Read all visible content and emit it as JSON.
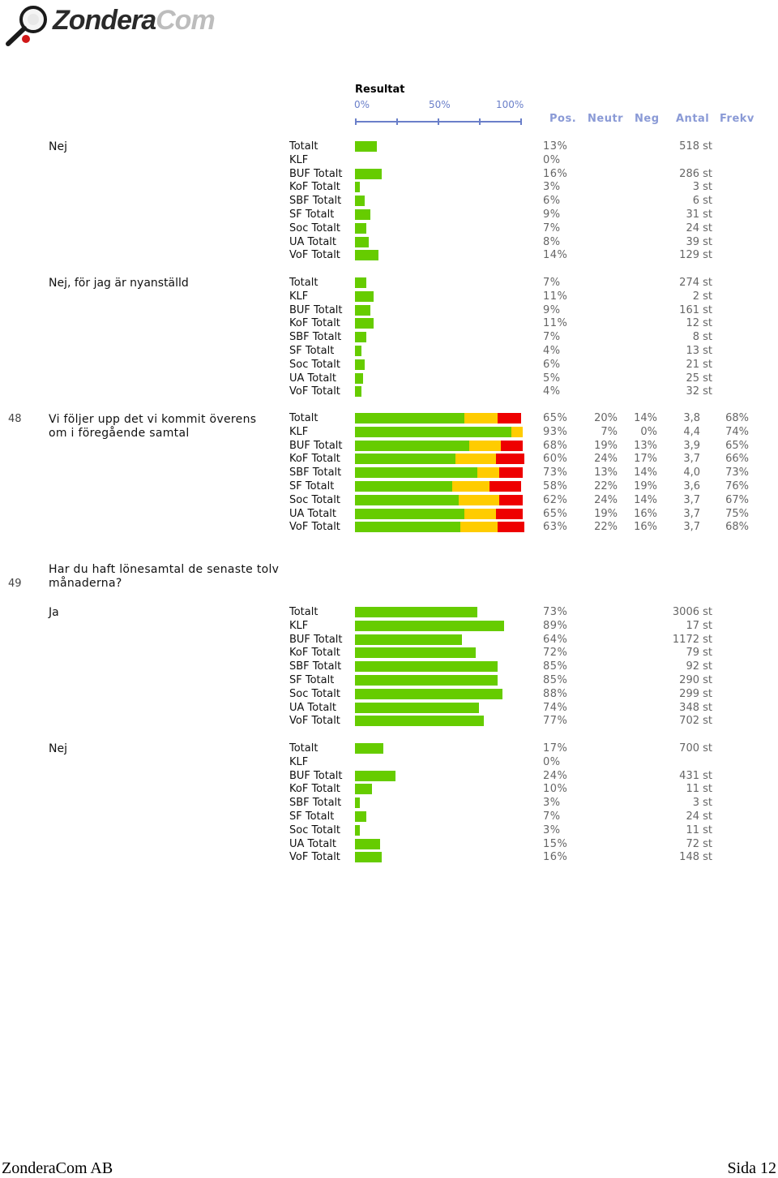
{
  "logo": {
    "text_main": "Zondera",
    "text_com": "Com"
  },
  "header": {
    "title": "Resultat",
    "scale": [
      "0%",
      "50%",
      "100%"
    ],
    "columns": {
      "pos": "Pos.",
      "neutr": "Neutr",
      "neg": "Neg",
      "antal": "Antal",
      "frekv": "Frekv"
    }
  },
  "questions": {
    "q48": {
      "number": "48",
      "text": "Vi följer upp det vi kommit överens om i föregående samtal"
    },
    "q49": {
      "number": "49",
      "text": "Har du haft lönesamtal de senaste tolv månaderna?"
    }
  },
  "groups": [
    {
      "label": "Nej",
      "type": "count",
      "rows": [
        {
          "label": "Totalt",
          "pct": "13%",
          "count": "518 st",
          "value": 13
        },
        {
          "label": "KLF",
          "pct": "0%",
          "count": "",
          "value": 0
        },
        {
          "label": "BUF Totalt",
          "pct": "16%",
          "count": "286 st",
          "value": 16
        },
        {
          "label": "KoF Totalt",
          "pct": "3%",
          "count": "3 st",
          "value": 3
        },
        {
          "label": "SBF Totalt",
          "pct": "6%",
          "count": "6 st",
          "value": 6
        },
        {
          "label": "SF Totalt",
          "pct": "9%",
          "count": "31 st",
          "value": 9
        },
        {
          "label": "Soc Totalt",
          "pct": "7%",
          "count": "24 st",
          "value": 7
        },
        {
          "label": "UA Totalt",
          "pct": "8%",
          "count": "39 st",
          "value": 8
        },
        {
          "label": "VoF Totalt",
          "pct": "14%",
          "count": "129 st",
          "value": 14
        }
      ]
    },
    {
      "label": "Nej, för jag är nyanställd",
      "type": "count",
      "rows": [
        {
          "label": "Totalt",
          "pct": "7%",
          "count": "274 st",
          "value": 7
        },
        {
          "label": "KLF",
          "pct": "11%",
          "count": "2 st",
          "value": 11
        },
        {
          "label": "BUF Totalt",
          "pct": "9%",
          "count": "161 st",
          "value": 9
        },
        {
          "label": "KoF Totalt",
          "pct": "11%",
          "count": "12 st",
          "value": 11
        },
        {
          "label": "SBF Totalt",
          "pct": "7%",
          "count": "8 st",
          "value": 7
        },
        {
          "label": "SF Totalt",
          "pct": "4%",
          "count": "13 st",
          "value": 4
        },
        {
          "label": "Soc Totalt",
          "pct": "6%",
          "count": "21 st",
          "value": 6
        },
        {
          "label": "UA Totalt",
          "pct": "5%",
          "count": "25 st",
          "value": 5
        },
        {
          "label": "VoF Totalt",
          "pct": "4%",
          "count": "32 st",
          "value": 4
        }
      ]
    },
    {
      "label": "",
      "type": "scale",
      "question": "q48",
      "rows": [
        {
          "label": "Totalt",
          "pos": "65%",
          "neutr": "20%",
          "neg": "14%",
          "antal": "3,8",
          "frekv": "68%",
          "v": [
            65,
            20,
            14
          ]
        },
        {
          "label": "KLF",
          "pos": "93%",
          "neutr": "7%",
          "neg": "0%",
          "antal": "4,4",
          "frekv": "74%",
          "v": [
            93,
            7,
            0
          ]
        },
        {
          "label": "BUF Totalt",
          "pos": "68%",
          "neutr": "19%",
          "neg": "13%",
          "antal": "3,9",
          "frekv": "65%",
          "v": [
            68,
            19,
            13
          ]
        },
        {
          "label": "KoF Totalt",
          "pos": "60%",
          "neutr": "24%",
          "neg": "17%",
          "antal": "3,7",
          "frekv": "66%",
          "v": [
            60,
            24,
            17
          ]
        },
        {
          "label": "SBF Totalt",
          "pos": "73%",
          "neutr": "13%",
          "neg": "14%",
          "antal": "4,0",
          "frekv": "73%",
          "v": [
            73,
            13,
            14
          ]
        },
        {
          "label": "SF Totalt",
          "pos": "58%",
          "neutr": "22%",
          "neg": "19%",
          "antal": "3,6",
          "frekv": "76%",
          "v": [
            58,
            22,
            19
          ]
        },
        {
          "label": "Soc Totalt",
          "pos": "62%",
          "neutr": "24%",
          "neg": "14%",
          "antal": "3,7",
          "frekv": "67%",
          "v": [
            62,
            24,
            14
          ]
        },
        {
          "label": "UA Totalt",
          "pos": "65%",
          "neutr": "19%",
          "neg": "16%",
          "antal": "3,7",
          "frekv": "75%",
          "v": [
            65,
            19,
            16
          ]
        },
        {
          "label": "VoF Totalt",
          "pos": "63%",
          "neutr": "22%",
          "neg": "16%",
          "antal": "3,7",
          "frekv": "68%",
          "v": [
            63,
            22,
            16
          ]
        }
      ]
    },
    {
      "label": "Ja",
      "type": "count",
      "rows": [
        {
          "label": "Totalt",
          "pct": "73%",
          "count": "3006 st",
          "value": 73
        },
        {
          "label": "KLF",
          "pct": "89%",
          "count": "17 st",
          "value": 89
        },
        {
          "label": "BUF Totalt",
          "pct": "64%",
          "count": "1172 st",
          "value": 64
        },
        {
          "label": "KoF Totalt",
          "pct": "72%",
          "count": "79 st",
          "value": 72
        },
        {
          "label": "SBF Totalt",
          "pct": "85%",
          "count": "92 st",
          "value": 85
        },
        {
          "label": "SF Totalt",
          "pct": "85%",
          "count": "290 st",
          "value": 85
        },
        {
          "label": "Soc Totalt",
          "pct": "88%",
          "count": "299 st",
          "value": 88
        },
        {
          "label": "UA Totalt",
          "pct": "74%",
          "count": "348 st",
          "value": 74
        },
        {
          "label": "VoF Totalt",
          "pct": "77%",
          "count": "702 st",
          "value": 77
        }
      ]
    },
    {
      "label": "Nej",
      "type": "count",
      "rows": [
        {
          "label": "Totalt",
          "pct": "17%",
          "count": "700 st",
          "value": 17
        },
        {
          "label": "KLF",
          "pct": "0%",
          "count": "",
          "value": 0
        },
        {
          "label": "BUF Totalt",
          "pct": "24%",
          "count": "431 st",
          "value": 24
        },
        {
          "label": "KoF Totalt",
          "pct": "10%",
          "count": "11 st",
          "value": 10
        },
        {
          "label": "SBF Totalt",
          "pct": "3%",
          "count": "3 st",
          "value": 3
        },
        {
          "label": "SF Totalt",
          "pct": "7%",
          "count": "24 st",
          "value": 7
        },
        {
          "label": "Soc Totalt",
          "pct": "3%",
          "count": "11 st",
          "value": 3
        },
        {
          "label": "UA Totalt",
          "pct": "15%",
          "count": "72 st",
          "value": 15
        },
        {
          "label": "VoF Totalt",
          "pct": "16%",
          "count": "148 st",
          "value": 16
        }
      ]
    }
  ],
  "footer": {
    "company": "ZonderaCom AB",
    "page": "Sida 12"
  },
  "colors": {
    "positive": "#66cc00",
    "neutral": "#ffcc00",
    "negative": "#ee0000",
    "header_accent": "#8a9ad6"
  }
}
